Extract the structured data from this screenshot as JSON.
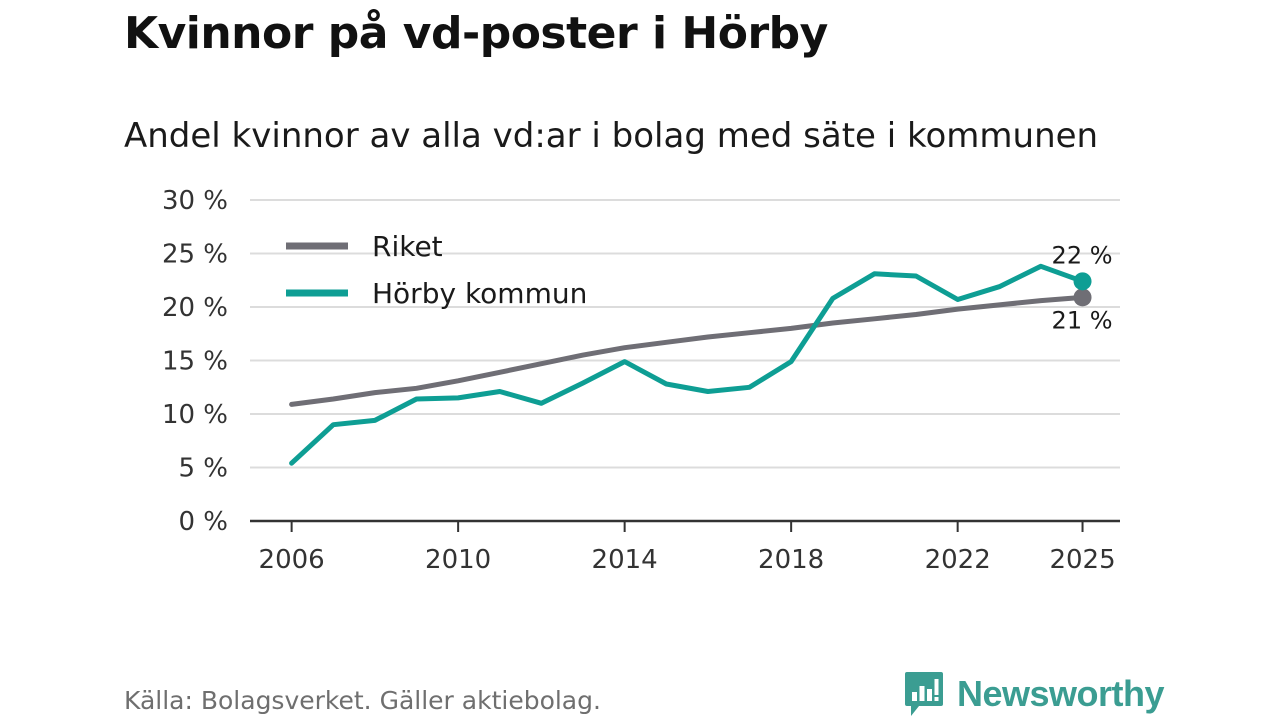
{
  "title": "Kvinnor på vd-poster i Hörby",
  "subtitle": "Andel kvinnor av alla vd:ar i bolag med säte i kommunen",
  "source": "Källa: Bolagsverket. Gäller aktiebolag.",
  "brand": "Newsworthy",
  "colors": {
    "riket": "#6f6e75",
    "horby": "#0e9e94",
    "grid": "#dcdcdc",
    "axis": "#333333"
  },
  "chart_data": {
    "type": "line",
    "title": "Kvinnor på vd-poster i Hörby",
    "subtitle": "Andel kvinnor av alla vd:ar i bolag med säte i kommunen",
    "xlim": [
      2005,
      2025.9
    ],
    "ylim": [
      0,
      30
    ],
    "grid": true,
    "legend_position": "top-left",
    "x_ticks": [
      2006,
      2010,
      2014,
      2018,
      2022,
      2025
    ],
    "x_tick_labels": [
      "2006",
      "2010",
      "2014",
      "2018",
      "2022",
      "2025"
    ],
    "y_ticks": [
      0,
      5,
      10,
      15,
      20,
      25,
      30
    ],
    "y_tick_labels": [
      "0 %",
      "5 %",
      "10 %",
      "15 %",
      "20 %",
      "25 %",
      "30 %"
    ],
    "series": [
      {
        "name": "Riket",
        "color": "#6f6e75",
        "end_label": "21 %",
        "points": [
          [
            2006,
            10.9
          ],
          [
            2007,
            11.4
          ],
          [
            2008,
            12.0
          ],
          [
            2009,
            12.4
          ],
          [
            2010,
            13.1
          ],
          [
            2011,
            13.9
          ],
          [
            2012,
            14.7
          ],
          [
            2013,
            15.5
          ],
          [
            2014,
            16.2
          ],
          [
            2015,
            16.7
          ],
          [
            2016,
            17.2
          ],
          [
            2017,
            17.6
          ],
          [
            2018,
            18.0
          ],
          [
            2019,
            18.5
          ],
          [
            2020,
            18.9
          ],
          [
            2021,
            19.3
          ],
          [
            2022,
            19.8
          ],
          [
            2023,
            20.2
          ],
          [
            2024,
            20.6
          ],
          [
            2025,
            20.9
          ]
        ]
      },
      {
        "name": "Hörby kommun",
        "color": "#0e9e94",
        "end_label": "22 %",
        "points": [
          [
            2006,
            5.4
          ],
          [
            2007,
            9.0
          ],
          [
            2008,
            9.4
          ],
          [
            2009,
            11.4
          ],
          [
            2010,
            11.5
          ],
          [
            2011,
            12.1
          ],
          [
            2012,
            11.0
          ],
          [
            2013,
            12.9
          ],
          [
            2014,
            14.9
          ],
          [
            2015,
            12.8
          ],
          [
            2016,
            12.1
          ],
          [
            2017,
            12.5
          ],
          [
            2018,
            14.9
          ],
          [
            2019,
            20.8
          ],
          [
            2020,
            23.1
          ],
          [
            2021,
            22.9
          ],
          [
            2022,
            20.7
          ],
          [
            2023,
            21.9
          ],
          [
            2024,
            23.8
          ],
          [
            2024.5,
            23.1
          ],
          [
            2025,
            22.4
          ]
        ]
      }
    ]
  }
}
